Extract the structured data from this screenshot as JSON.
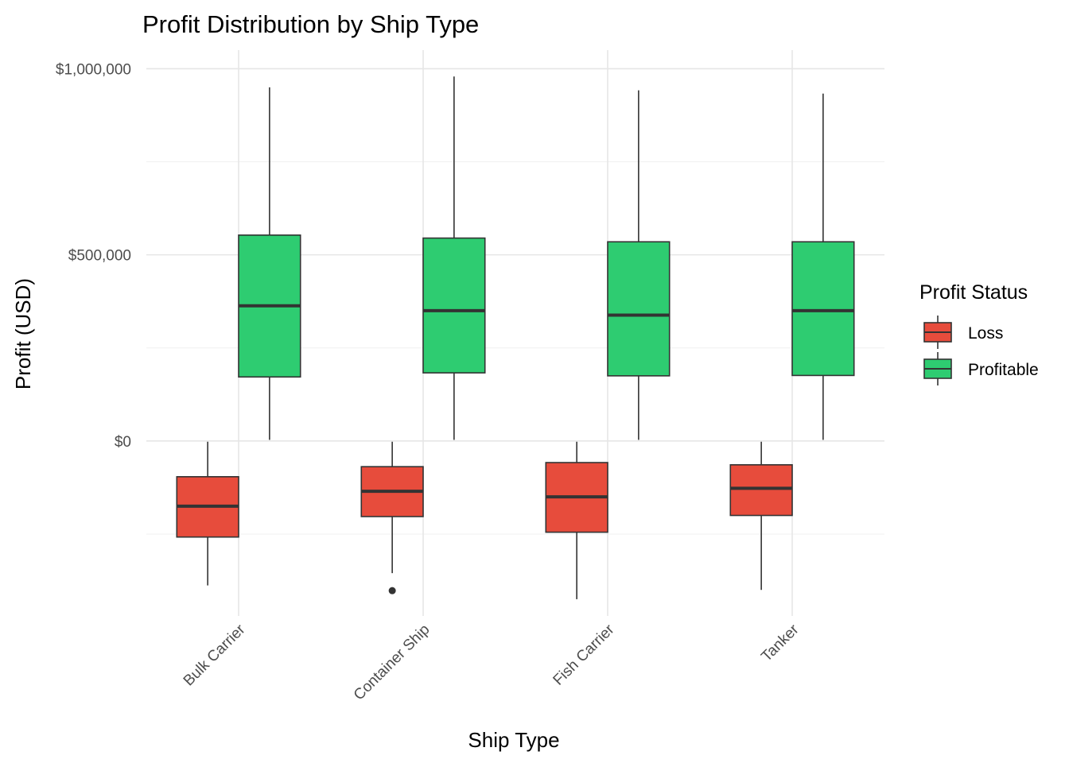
{
  "chart_data": {
    "type": "boxplot",
    "title": "Profit Distribution by Ship Type",
    "xlabel": "Ship Type",
    "ylabel": "Profit (USD)",
    "ylim": [
      -470000,
      1050000
    ],
    "y_ticks": [
      {
        "value": 0,
        "label": "$0"
      },
      {
        "value": 500000,
        "label": "$500,000"
      },
      {
        "value": 1000000,
        "label": "$1,000,000"
      }
    ],
    "y_minor_ticks": [
      -250000,
      250000,
      750000
    ],
    "grid": true,
    "categories": [
      "Bulk Carrier",
      "Container Ship",
      "Fish Carrier",
      "Tanker"
    ],
    "legend": {
      "title": "Profit Status",
      "position": "right"
    },
    "series": [
      {
        "name": "Loss",
        "color": "#e74c3c",
        "boxes": [
          {
            "category": "Bulk Carrier",
            "min": -388000,
            "q1": -258000,
            "median": -175000,
            "q3": -96000,
            "max": -2000,
            "outliers": []
          },
          {
            "category": "Container Ship",
            "min": -355000,
            "q1": -203000,
            "median": -135000,
            "q3": -69000,
            "max": -2000,
            "outliers": [
              -402000
            ]
          },
          {
            "category": "Fish Carrier",
            "min": -425000,
            "q1": -245000,
            "median": -150000,
            "q3": -58000,
            "max": -2000,
            "outliers": []
          },
          {
            "category": "Tanker",
            "min": -400000,
            "q1": -200000,
            "median": -127000,
            "q3": -64000,
            "max": -2000,
            "outliers": []
          }
        ]
      },
      {
        "name": "Profitable",
        "color": "#2ecc71",
        "boxes": [
          {
            "category": "Bulk Carrier",
            "min": 3000,
            "q1": 172000,
            "median": 363000,
            "q3": 553000,
            "max": 950000,
            "outliers": []
          },
          {
            "category": "Container Ship",
            "min": 3000,
            "q1": 183000,
            "median": 350000,
            "q3": 545000,
            "max": 979000,
            "outliers": []
          },
          {
            "category": "Fish Carrier",
            "min": 3000,
            "q1": 175000,
            "median": 338000,
            "q3": 535000,
            "max": 942000,
            "outliers": []
          },
          {
            "category": "Tanker",
            "min": 3000,
            "q1": 176000,
            "median": 350000,
            "q3": 535000,
            "max": 933000,
            "outliers": []
          }
        ]
      }
    ]
  }
}
